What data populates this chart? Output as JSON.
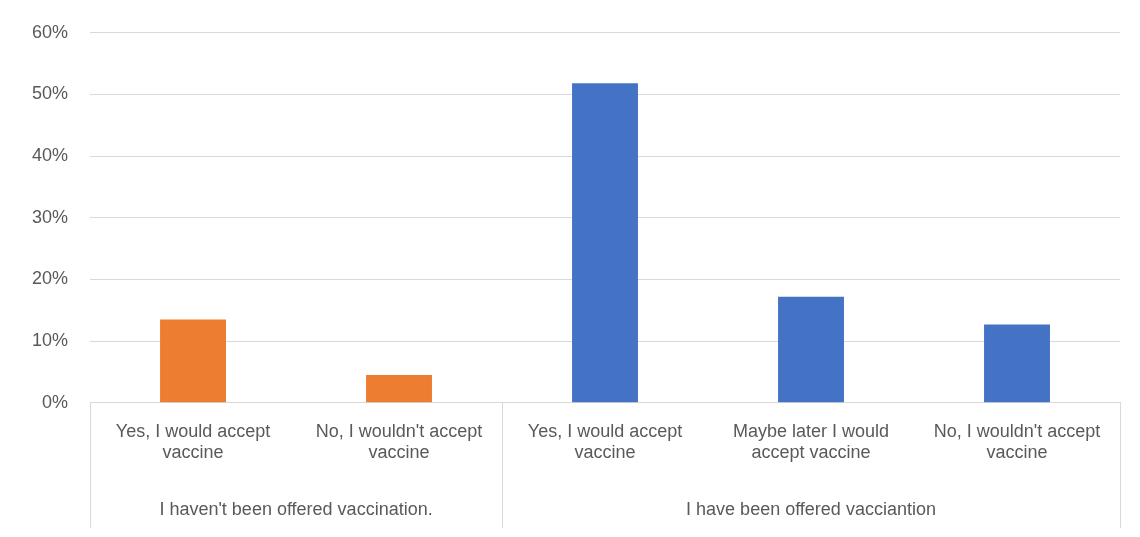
{
  "chart_data": {
    "type": "bar",
    "categories": [
      "Yes, I would accept vaccine",
      "No, I wouldn't accept vaccine",
      "Yes, I would accept vaccine",
      "Maybe later I would accept vaccine",
      "No, I wouldn't accept vaccine"
    ],
    "series": [
      {
        "color": "#ed7d31",
        "values": [
          13.5,
          4.5,
          null,
          null,
          null
        ]
      },
      {
        "color": "#4472c4",
        "values": [
          null,
          null,
          51.8,
          17.2,
          12.7
        ]
      }
    ],
    "annotations": [
      "I haven't been offered vaccination.",
      "I have been offered vacciantion"
    ],
    "ylim": [
      0,
      60
    ],
    "yticks": [
      {
        "value": 0,
        "label": "0%"
      },
      {
        "value": 10,
        "label": "10%"
      },
      {
        "value": 20,
        "label": "20%"
      },
      {
        "value": 30,
        "label": "30%"
      },
      {
        "value": 40,
        "label": "40%"
      },
      {
        "value": 50,
        "label": "50%"
      },
      {
        "value": 60,
        "label": "60%"
      }
    ],
    "grid": "y",
    "legend": false
  }
}
